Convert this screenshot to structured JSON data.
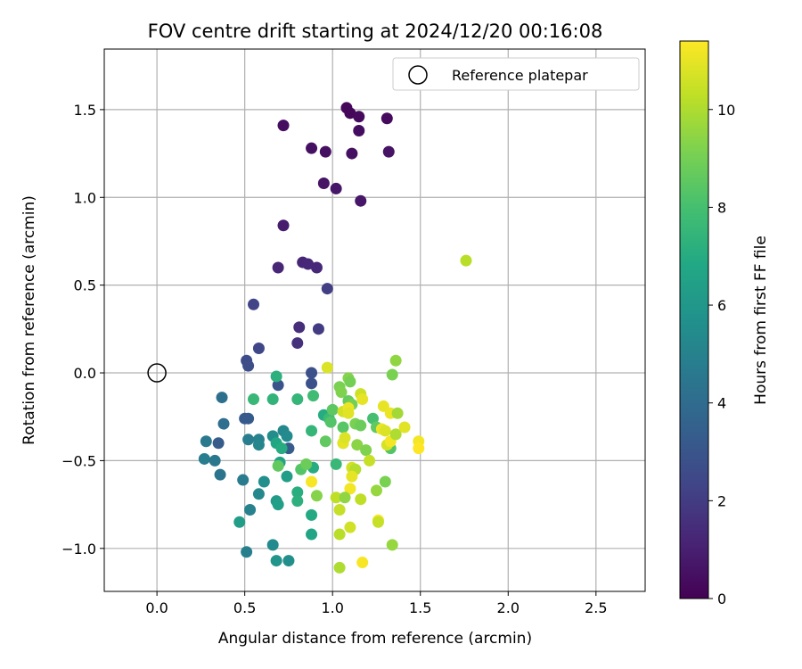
{
  "chart_data": {
    "type": "scatter",
    "title": "FOV centre drift starting at 2024/12/20 00:16:08",
    "xlabel": "Angular distance from reference (arcmin)",
    "ylabel": "Rotation from reference (arcmin)",
    "xlim": [
      -0.3,
      2.78
    ],
    "ylim": [
      -1.245,
      1.845
    ],
    "x_ticks": [
      0.0,
      0.5,
      1.0,
      1.5,
      2.0,
      2.5
    ],
    "y_ticks": [
      -1.0,
      -0.5,
      0.0,
      0.5,
      1.0,
      1.5
    ],
    "x_tick_labels": [
      "0.0",
      "0.5",
      "1.0",
      "1.5",
      "2.0",
      "2.5"
    ],
    "y_tick_labels": [
      "−1.0",
      "−0.5",
      "0.0",
      "0.5",
      "1.0",
      "1.5"
    ],
    "grid": true,
    "legend": {
      "position": "top-right",
      "label": "Reference platepar"
    },
    "reference_point": {
      "x": 0.0,
      "y": 0.0
    },
    "colormap": "viridis",
    "colorbar": {
      "label": "Hours from first FF file",
      "range": [
        0,
        11.4
      ],
      "ticks": [
        0,
        2,
        4,
        6,
        8,
        10
      ],
      "tick_labels": [
        "0",
        "2",
        "4",
        "6",
        "8",
        "10"
      ]
    },
    "points": [
      {
        "x": 1.08,
        "y": 1.51,
        "c": 0.2
      },
      {
        "x": 1.1,
        "y": 1.48,
        "c": 0.2
      },
      {
        "x": 1.15,
        "y": 1.46,
        "c": 0.3
      },
      {
        "x": 1.31,
        "y": 1.45,
        "c": 0.3
      },
      {
        "x": 0.72,
        "y": 1.41,
        "c": 0.4
      },
      {
        "x": 1.15,
        "y": 1.38,
        "c": 0.4
      },
      {
        "x": 0.88,
        "y": 1.28,
        "c": 0.5
      },
      {
        "x": 0.96,
        "y": 1.26,
        "c": 0.5
      },
      {
        "x": 1.11,
        "y": 1.25,
        "c": 0.5
      },
      {
        "x": 1.32,
        "y": 1.26,
        "c": 0.6
      },
      {
        "x": 0.95,
        "y": 1.08,
        "c": 0.6
      },
      {
        "x": 1.02,
        "y": 1.05,
        "c": 0.7
      },
      {
        "x": 1.16,
        "y": 0.98,
        "c": 0.7
      },
      {
        "x": 0.72,
        "y": 0.84,
        "c": 0.9
      },
      {
        "x": 0.69,
        "y": 0.6,
        "c": 1.2
      },
      {
        "x": 0.83,
        "y": 0.63,
        "c": 1.2
      },
      {
        "x": 0.86,
        "y": 0.62,
        "c": 1.3
      },
      {
        "x": 0.91,
        "y": 0.6,
        "c": 1.3
      },
      {
        "x": 0.97,
        "y": 0.48,
        "c": 2.1
      },
      {
        "x": 0.55,
        "y": 0.39,
        "c": 2.3
      },
      {
        "x": 0.81,
        "y": 0.26,
        "c": 1.5
      },
      {
        "x": 0.92,
        "y": 0.25,
        "c": 2.0
      },
      {
        "x": 0.8,
        "y": 0.17,
        "c": 1.6
      },
      {
        "x": 0.58,
        "y": 0.14,
        "c": 2.4
      },
      {
        "x": 0.51,
        "y": 0.07,
        "c": 2.6
      },
      {
        "x": 0.52,
        "y": 0.04,
        "c": 2.7
      },
      {
        "x": 0.88,
        "y": 0.0,
        "c": 2.8
      },
      {
        "x": 0.88,
        "y": -0.06,
        "c": 2.8
      },
      {
        "x": 0.69,
        "y": -0.07,
        "c": 2.9
      },
      {
        "x": 0.37,
        "y": -0.14,
        "c": 4.2
      },
      {
        "x": 0.5,
        "y": -0.26,
        "c": 3.2
      },
      {
        "x": 0.52,
        "y": -0.26,
        "c": 3.2
      },
      {
        "x": 0.38,
        "y": -0.29,
        "c": 4.1
      },
      {
        "x": 0.28,
        "y": -0.39,
        "c": 4.6
      },
      {
        "x": 0.35,
        "y": -0.4,
        "c": 3.3
      },
      {
        "x": 0.52,
        "y": -0.38,
        "c": 4.8
      },
      {
        "x": 0.58,
        "y": -0.38,
        "c": 5.0
      },
      {
        "x": 0.58,
        "y": -0.41,
        "c": 5.2
      },
      {
        "x": 0.66,
        "y": -0.36,
        "c": 5.5
      },
      {
        "x": 0.72,
        "y": -0.33,
        "c": 5.3
      },
      {
        "x": 0.74,
        "y": -0.36,
        "c": 5.4
      },
      {
        "x": 0.75,
        "y": -0.43,
        "c": 3.3
      },
      {
        "x": 0.27,
        "y": -0.49,
        "c": 4.8
      },
      {
        "x": 0.33,
        "y": -0.5,
        "c": 4.5
      },
      {
        "x": 0.36,
        "y": -0.58,
        "c": 4.4
      },
      {
        "x": 0.49,
        "y": -0.61,
        "c": 4.7
      },
      {
        "x": 0.53,
        "y": -0.78,
        "c": 5.0
      },
      {
        "x": 0.58,
        "y": -0.69,
        "c": 5.3
      },
      {
        "x": 0.61,
        "y": -0.62,
        "c": 5.6
      },
      {
        "x": 0.47,
        "y": -0.85,
        "c": 6.3
      },
      {
        "x": 0.51,
        "y": -1.02,
        "c": 4.9
      },
      {
        "x": 0.66,
        "y": -0.98,
        "c": 5.4
      },
      {
        "x": 0.68,
        "y": -1.07,
        "c": 5.9
      },
      {
        "x": 0.75,
        "y": -1.07,
        "c": 5.6
      },
      {
        "x": 0.68,
        "y": -0.73,
        "c": 6.2
      },
      {
        "x": 0.69,
        "y": -0.75,
        "c": 6.4
      },
      {
        "x": 0.7,
        "y": -0.51,
        "c": 6.6
      },
      {
        "x": 0.74,
        "y": -0.59,
        "c": 6.3
      },
      {
        "x": 0.68,
        "y": -0.4,
        "c": 6.8
      },
      {
        "x": 0.71,
        "y": -0.43,
        "c": 7.0
      },
      {
        "x": 0.68,
        "y": -0.02,
        "c": 7.2
      },
      {
        "x": 0.55,
        "y": -0.15,
        "c": 7.6
      },
      {
        "x": 0.66,
        "y": -0.15,
        "c": 7.4
      },
      {
        "x": 0.8,
        "y": -0.15,
        "c": 7.5
      },
      {
        "x": 0.8,
        "y": -0.68,
        "c": 7.1
      },
      {
        "x": 0.8,
        "y": -0.73,
        "c": 7.2
      },
      {
        "x": 0.88,
        "y": -0.81,
        "c": 6.9
      },
      {
        "x": 0.88,
        "y": -0.92,
        "c": 6.7
      },
      {
        "x": 0.89,
        "y": -0.54,
        "c": 7.0
      },
      {
        "x": 0.88,
        "y": -0.33,
        "c": 7.5
      },
      {
        "x": 0.89,
        "y": -0.13,
        "c": 7.8
      },
      {
        "x": 0.95,
        "y": -0.24,
        "c": 7.0
      },
      {
        "x": 0.98,
        "y": -0.26,
        "c": 7.7
      },
      {
        "x": 0.99,
        "y": -0.28,
        "c": 8.3
      },
      {
        "x": 1.02,
        "y": -0.52,
        "c": 7.6
      },
      {
        "x": 1.06,
        "y": -0.4,
        "c": 7.9
      },
      {
        "x": 1.06,
        "y": -0.31,
        "c": 8.4
      },
      {
        "x": 1.0,
        "y": -0.21,
        "c": 8.5
      },
      {
        "x": 0.96,
        "y": -0.39,
        "c": 8.6
      },
      {
        "x": 0.82,
        "y": -0.55,
        "c": 8.3
      },
      {
        "x": 0.85,
        "y": -0.52,
        "c": 8.8
      },
      {
        "x": 0.69,
        "y": -0.53,
        "c": 8.6
      },
      {
        "x": 0.91,
        "y": -0.7,
        "c": 9.3
      },
      {
        "x": 1.04,
        "y": -0.08,
        "c": 9.1
      },
      {
        "x": 1.05,
        "y": -0.11,
        "c": 9.2
      },
      {
        "x": 1.09,
        "y": -0.03,
        "c": 9.3
      },
      {
        "x": 1.1,
        "y": -0.05,
        "c": 9.0
      },
      {
        "x": 1.09,
        "y": -0.16,
        "c": 8.7
      },
      {
        "x": 1.11,
        "y": -0.18,
        "c": 9.0
      },
      {
        "x": 1.13,
        "y": -0.29,
        "c": 9.1
      },
      {
        "x": 1.14,
        "y": -0.41,
        "c": 9.4
      },
      {
        "x": 1.16,
        "y": -0.3,
        "c": 8.8
      },
      {
        "x": 1.19,
        "y": -0.44,
        "c": 9.2
      },
      {
        "x": 1.23,
        "y": -0.26,
        "c": 8.0
      },
      {
        "x": 1.25,
        "y": -0.31,
        "c": 8.6
      },
      {
        "x": 1.33,
        "y": -0.43,
        "c": 8.3
      },
      {
        "x": 1.34,
        "y": -0.01,
        "c": 9.1
      },
      {
        "x": 1.36,
        "y": 0.07,
        "c": 9.5
      },
      {
        "x": 1.3,
        "y": -0.62,
        "c": 9.1
      },
      {
        "x": 1.25,
        "y": -0.67,
        "c": 9.6
      },
      {
        "x": 1.34,
        "y": -0.98,
        "c": 9.6
      },
      {
        "x": 1.21,
        "y": -0.5,
        "c": 10.4
      },
      {
        "x": 1.11,
        "y": -0.54,
        "c": 10.6
      },
      {
        "x": 1.13,
        "y": -0.55,
        "c": 10.1
      },
      {
        "x": 1.11,
        "y": -0.59,
        "c": 11.0
      },
      {
        "x": 1.1,
        "y": -0.66,
        "c": 11.2
      },
      {
        "x": 1.06,
        "y": -0.4,
        "c": 11.0
      },
      {
        "x": 1.07,
        "y": -0.37,
        "c": 10.8
      },
      {
        "x": 1.06,
        "y": -0.22,
        "c": 10.6
      },
      {
        "x": 1.09,
        "y": -0.2,
        "c": 11.1
      },
      {
        "x": 1.09,
        "y": -0.23,
        "c": 10.9
      },
      {
        "x": 1.16,
        "y": -0.12,
        "c": 10.5
      },
      {
        "x": 1.17,
        "y": -0.15,
        "c": 11.0
      },
      {
        "x": 1.28,
        "y": -0.32,
        "c": 11.1
      },
      {
        "x": 1.3,
        "y": -0.33,
        "c": 10.8
      },
      {
        "x": 1.29,
        "y": -0.19,
        "c": 11.0
      },
      {
        "x": 1.31,
        "y": -0.41,
        "c": 10.7
      },
      {
        "x": 1.33,
        "y": -0.39,
        "c": 11.2
      },
      {
        "x": 1.33,
        "y": -0.23,
        "c": 11.1
      },
      {
        "x": 1.37,
        "y": -0.23,
        "c": 9.8
      },
      {
        "x": 1.36,
        "y": -0.35,
        "c": 10.0
      },
      {
        "x": 1.41,
        "y": -0.31,
        "c": 10.9
      },
      {
        "x": 1.49,
        "y": -0.39,
        "c": 11.2
      },
      {
        "x": 1.49,
        "y": -0.43,
        "c": 11.4
      },
      {
        "x": 0.97,
        "y": 0.03,
        "c": 10.8
      },
      {
        "x": 1.02,
        "y": -0.71,
        "c": 10.3
      },
      {
        "x": 1.07,
        "y": -0.71,
        "c": 9.5
      },
      {
        "x": 1.04,
        "y": -0.78,
        "c": 10.4
      },
      {
        "x": 1.1,
        "y": -0.88,
        "c": 10.6
      },
      {
        "x": 1.04,
        "y": -0.92,
        "c": 10.2
      },
      {
        "x": 1.04,
        "y": -1.11,
        "c": 10.0
      },
      {
        "x": 1.17,
        "y": -1.08,
        "c": 11.3
      },
      {
        "x": 1.26,
        "y": -0.84,
        "c": 11.3
      },
      {
        "x": 1.26,
        "y": -0.85,
        "c": 10.4
      },
      {
        "x": 1.16,
        "y": -0.72,
        "c": 10.3
      },
      {
        "x": 0.88,
        "y": -0.62,
        "c": 11.3
      },
      {
        "x": 1.76,
        "y": 0.64,
        "c": 10.2
      }
    ]
  }
}
